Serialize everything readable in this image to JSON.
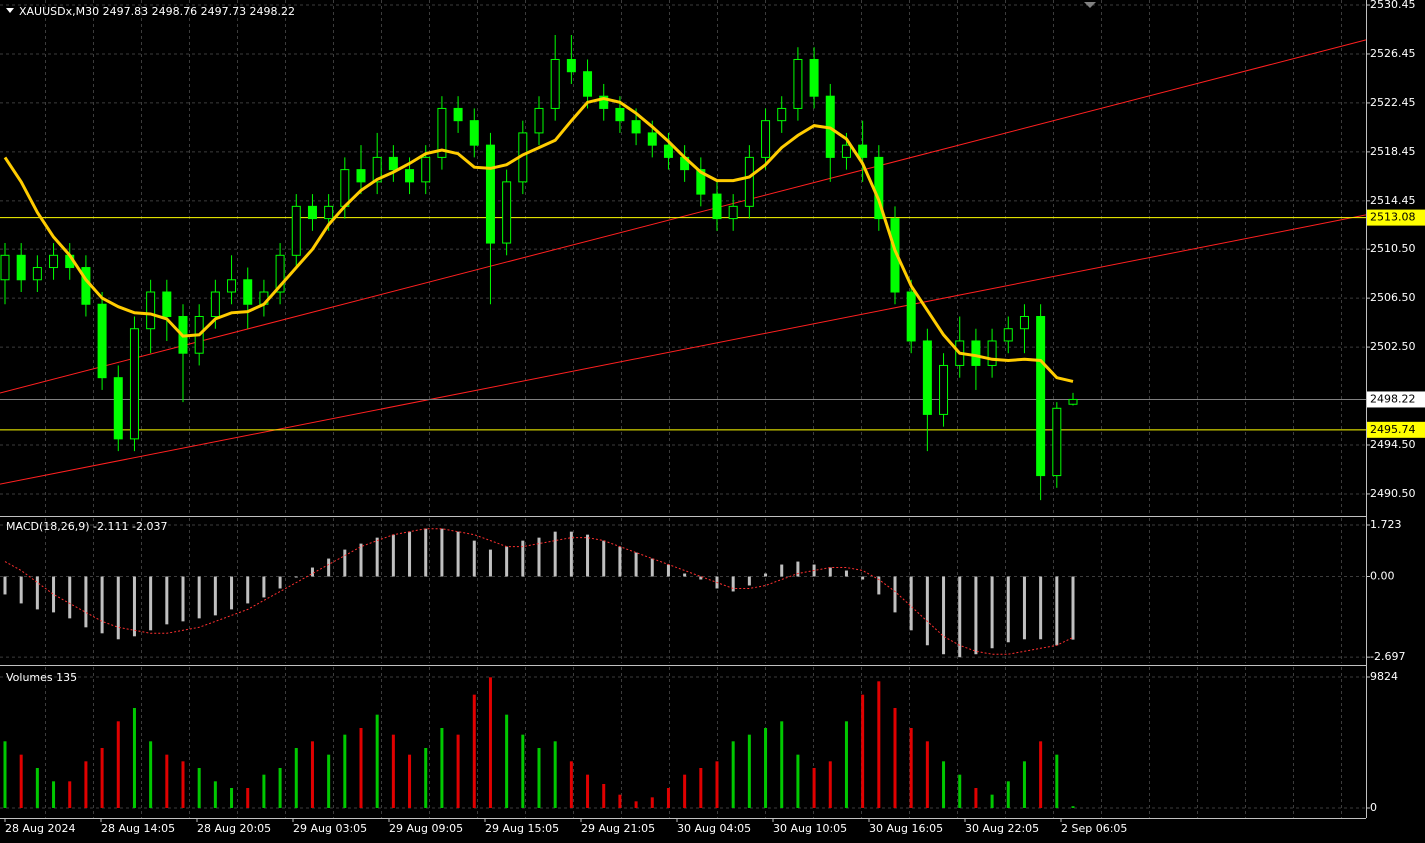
{
  "header": {
    "symbol": "XAUUSDx,M30  2497.83 2498.76 2497.73 2498.22"
  },
  "price": {
    "ylim": [
      2488.78,
      2530.86
    ],
    "yticks": [
      2530.45,
      2526.45,
      2522.45,
      2518.45,
      2514.45,
      {
        "value": 2510.5,
        "label": "2510.50"
      },
      {
        "value": 2506.5,
        "label": "2506.50"
      },
      {
        "value": 2502.5,
        "label": "2502.50"
      },
      {
        "value": 2494.5,
        "label": "2494.50"
      },
      {
        "value": 2490.5,
        "label": "2490.50"
      }
    ],
    "candles": [
      [
        2508,
        2511,
        2506,
        2510
      ],
      [
        2510,
        2511,
        2507,
        2508
      ],
      [
        2508,
        2510,
        2507,
        2509
      ],
      [
        2509,
        2511,
        2508,
        2510
      ],
      [
        2510,
        2511,
        2508,
        2509
      ],
      [
        2509,
        2510,
        2505,
        2506
      ],
      [
        2506,
        2507,
        2499,
        2500
      ],
      [
        2500,
        2501,
        2494,
        2495
      ],
      [
        2495,
        2505,
        2494,
        2504
      ],
      [
        2504,
        2508,
        2502,
        2507
      ],
      [
        2507,
        2508,
        2503,
        2505
      ],
      [
        2505,
        2506,
        2498,
        2502
      ],
      [
        2502,
        2506,
        2501,
        2505
      ],
      [
        2505,
        2508,
        2504,
        2507
      ],
      [
        2507,
        2510,
        2506,
        2508
      ],
      [
        2508,
        2509,
        2504,
        2506
      ],
      [
        2506,
        2508,
        2505,
        2507
      ],
      [
        2507,
        2511,
        2506,
        2510
      ],
      [
        2510,
        2515,
        2509,
        2514
      ],
      [
        2514,
        2515,
        2512,
        2513
      ],
      [
        2513,
        2515,
        2512,
        2514
      ],
      [
        2514,
        2518,
        2513,
        2517
      ],
      [
        2517,
        2519,
        2515,
        2516
      ],
      [
        2516,
        2520,
        2515,
        2518
      ],
      [
        2518,
        2519,
        2516,
        2517
      ],
      [
        2517,
        2518,
        2515,
        2516
      ],
      [
        2516,
        2519,
        2515,
        2518
      ],
      [
        2518,
        2523,
        2517,
        2522
      ],
      [
        2522,
        2523,
        2520,
        2521
      ],
      [
        2521,
        2522,
        2518,
        2519
      ],
      [
        2519,
        2520,
        2506,
        2511
      ],
      [
        2511,
        2517,
        2510,
        2516
      ],
      [
        2516,
        2521,
        2515,
        2520
      ],
      [
        2520,
        2523,
        2519,
        2522
      ],
      [
        2522,
        2528,
        2521,
        2526
      ],
      [
        2526,
        2528,
        2524,
        2525
      ],
      [
        2525,
        2526,
        2522,
        2523
      ],
      [
        2523,
        2524,
        2521,
        2522
      ],
      [
        2522,
        2523,
        2520,
        2521
      ],
      [
        2521,
        2522,
        2519,
        2520
      ],
      [
        2520,
        2521,
        2518,
        2519
      ],
      [
        2519,
        2520,
        2517,
        2518
      ],
      [
        2518,
        2519,
        2516,
        2517
      ],
      [
        2517,
        2518,
        2514,
        2515
      ],
      [
        2515,
        2516,
        2512,
        2513
      ],
      [
        2513,
        2515,
        2512,
        2514
      ],
      [
        2514,
        2519,
        2513,
        2518
      ],
      [
        2518,
        2522,
        2517,
        2521
      ],
      [
        2521,
        2523,
        2520,
        2522
      ],
      [
        2522,
        2527,
        2521,
        2526
      ],
      [
        2526,
        2527,
        2522,
        2523
      ],
      [
        2523,
        2524,
        2516,
        2518
      ],
      [
        2518,
        2520,
        2517,
        2519
      ],
      [
        2519,
        2521,
        2516,
        2518
      ],
      [
        2518,
        2519,
        2512,
        2513
      ],
      [
        2513,
        2514,
        2506,
        2507
      ],
      [
        2507,
        2508,
        2502,
        2503
      ],
      [
        2503,
        2504,
        2494,
        2497
      ],
      [
        2497,
        2502,
        2496,
        2501
      ],
      [
        2501,
        2505,
        2500,
        2503
      ],
      [
        2503,
        2504,
        2499,
        2501
      ],
      [
        2501,
        2504,
        2500,
        2503
      ],
      [
        2503,
        2505,
        2502,
        2504
      ],
      [
        2504,
        2506,
        2502,
        2505
      ],
      [
        2505,
        2506,
        2490,
        2492
      ],
      [
        2492,
        2498,
        2491,
        2497.5
      ],
      [
        2497.83,
        2498.76,
        2497.73,
        2498.22
      ]
    ],
    "ma": [
      2518,
      2516,
      2513.5,
      2511.5,
      2510,
      2508,
      2506.5,
      2505.8,
      2505.3,
      2505.2,
      2504.8,
      2503.4,
      2503.5,
      2504.8,
      2505.3,
      2505.4,
      2506,
      2507.5,
      2509,
      2510.5,
      2512.5,
      2514,
      2515.3,
      2516.2,
      2516.8,
      2517.5,
      2518.3,
      2518.6,
      2518.3,
      2517.2,
      2517.1,
      2517.4,
      2518.2,
      2518.8,
      2519.4,
      2521,
      2522.5,
      2522.8,
      2522.5,
      2521.6,
      2520.5,
      2519.3,
      2518,
      2516.8,
      2516.1,
      2516.1,
      2516.4,
      2517.4,
      2518.8,
      2519.8,
      2520.6,
      2520.4,
      2519.5,
      2517.5,
      2514.5,
      2510.4,
      2507.5,
      2505.5,
      2503.5,
      2502,
      2501.8,
      2501.5,
      2501.4,
      2501.5,
      2501.4,
      2500,
      2499.7
    ],
    "ma_color": "#ffcc00",
    "levels": [
      {
        "value": 2513.08,
        "color": "#ffff00"
      },
      {
        "value": 2495.74,
        "color": "#ffff00"
      },
      {
        "value": 2498.22,
        "color": "#808080"
      }
    ],
    "trendlines": [
      {
        "from": 2498.75,
        "to": 2527.6
      },
      {
        "from": 2491.3,
        "to": 2513.3
      }
    ],
    "trend_color": "#ff2020"
  },
  "macd": {
    "label": "MACD(18,26,9) -2.111 -2.037",
    "ylim": [
      -2.893,
      1.957
    ],
    "yticks": [
      1.723,
      {
        "value": 0,
        "label": "0.00"
      },
      -2.697
    ],
    "hist": [
      -0.6,
      -0.9,
      -1.1,
      -1.2,
      -1.4,
      -1.7,
      -1.9,
      -2.1,
      -2.0,
      -1.8,
      -1.6,
      -1.5,
      -1.4,
      -1.3,
      -1.1,
      -0.9,
      -0.7,
      -0.4,
      0.0,
      0.3,
      0.6,
      0.9,
      1.1,
      1.3,
      1.4,
      1.5,
      1.6,
      1.6,
      1.5,
      1.2,
      0.9,
      1.0,
      1.2,
      1.3,
      1.5,
      1.5,
      1.4,
      1.2,
      1.0,
      0.8,
      0.6,
      0.4,
      0.1,
      -0.1,
      -0.4,
      -0.5,
      -0.3,
      0.1,
      0.4,
      0.5,
      0.4,
      0.3,
      0.2,
      -0.1,
      -0.6,
      -1.2,
      -1.8,
      -2.3,
      -2.6,
      -2.7,
      -2.6,
      -2.4,
      -2.2,
      -2.1,
      -2.1,
      -2.3,
      -2.111
    ],
    "signal": [
      0.5,
      0.2,
      -0.2,
      -0.6,
      -0.9,
      -1.2,
      -1.5,
      -1.7,
      -1.8,
      -1.9,
      -1.9,
      -1.8,
      -1.7,
      -1.5,
      -1.3,
      -1.1,
      -0.8,
      -0.5,
      -0.2,
      0.1,
      0.4,
      0.7,
      1.0,
      1.2,
      1.4,
      1.5,
      1.6,
      1.6,
      1.5,
      1.4,
      1.2,
      1.0,
      1.0,
      1.1,
      1.2,
      1.3,
      1.3,
      1.2,
      1.0,
      0.8,
      0.6,
      0.4,
      0.2,
      0.0,
      -0.2,
      -0.4,
      -0.4,
      -0.3,
      -0.1,
      0.1,
      0.2,
      0.3,
      0.3,
      0.2,
      -0.1,
      -0.5,
      -1.0,
      -1.5,
      -2.0,
      -2.3,
      -2.5,
      -2.6,
      -2.6,
      -2.5,
      -2.4,
      -2.3,
      -2.037
    ]
  },
  "volume": {
    "label": "Volumes 135",
    "ylim": [
      -750,
      10574
    ],
    "yticks": [
      9824,
      0
    ],
    "values": [
      5000,
      4000,
      3000,
      2000,
      2000,
      3500,
      4500,
      6500,
      7500,
      5000,
      4000,
      3500,
      3000,
      2000,
      1500,
      1500,
      2500,
      3000,
      4500,
      5000,
      4000,
      5500,
      6000,
      7000,
      5500,
      4000,
      4500,
      6000,
      5500,
      8500,
      9800,
      7000,
      5500,
      4500,
      5000,
      3500,
      2500,
      1800,
      1000,
      500,
      800,
      1500,
      2500,
      3000,
      3500,
      5000,
      5500,
      6000,
      6500,
      4000,
      3000,
      3500,
      6500,
      8500,
      9500,
      7500,
      6000,
      5000,
      3500,
      2500,
      1500,
      1000,
      2000,
      3500,
      5000,
      4000,
      135
    ]
  },
  "time_labels": [
    "28 Aug 2024",
    "28 Aug 14:05",
    "28 Aug 20:05",
    "29 Aug 03:05",
    "29 Aug 09:05",
    "29 Aug 15:05",
    "29 Aug 21:05",
    "30 Aug 04:05",
    "30 Aug 10:05",
    "30 Aug 16:05",
    "30 Aug 22:05",
    "2 Sep 06:05"
  ]
}
